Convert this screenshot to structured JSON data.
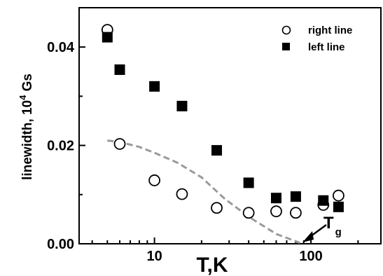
{
  "chart_data": {
    "type": "scatter",
    "title": "",
    "xlabel": "T,K",
    "ylabel_main": "linewidth, 10",
    "ylabel_sup": "4",
    "ylabel_unit": " Gs",
    "xscale": "log",
    "xlim": [
      3.3,
      280
    ],
    "ylim": [
      0,
      0.048
    ],
    "x_ticks": [
      10,
      100
    ],
    "x_tick_labels": [
      "10",
      "100"
    ],
    "y_ticks": [
      0.0,
      0.02,
      0.04
    ],
    "y_tick_labels": [
      "0.00",
      "0.02",
      "0.04"
    ],
    "grid": false,
    "legend_position": "top-right",
    "series": [
      {
        "name": "right line",
        "marker": "open-circle",
        "x": [
          5,
          6,
          10,
          15,
          25,
          40,
          60,
          80,
          120,
          150
        ],
        "y": [
          0.0435,
          0.0203,
          0.0129,
          0.0101,
          0.0073,
          0.0063,
          0.0066,
          0.0063,
          0.0079,
          0.0098
        ]
      },
      {
        "name": "left line",
        "marker": "filled-square",
        "x": [
          5,
          6,
          10,
          15,
          25,
          40,
          60,
          80,
          120,
          150
        ],
        "y": [
          0.042,
          0.0354,
          0.032,
          0.028,
          0.019,
          0.0124,
          0.0093,
          0.0096,
          0.0088,
          0.0075
        ]
      }
    ],
    "dashed_curve": {
      "x": [
        5,
        6,
        8,
        10,
        14,
        20,
        28,
        40,
        60,
        85
      ],
      "y": [
        0.021,
        0.0207,
        0.0197,
        0.0185,
        0.0165,
        0.0135,
        0.0092,
        0.0055,
        0.002,
        0.0002
      ]
    },
    "annotation": {
      "text": "T",
      "subscript": "g",
      "arrow_to": {
        "x": 85,
        "y": 0.0003
      }
    }
  }
}
